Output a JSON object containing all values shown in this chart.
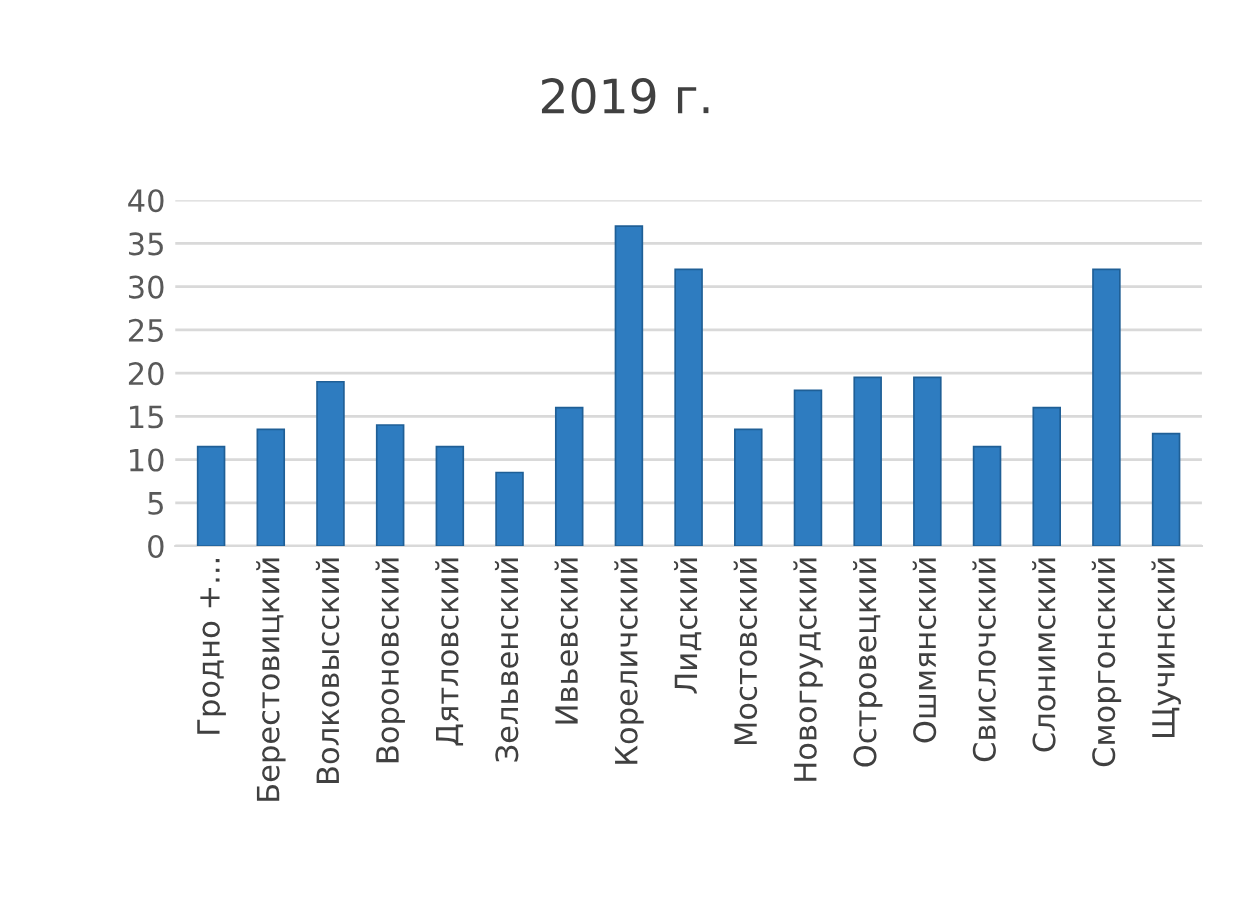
{
  "chart_data": {
    "type": "bar",
    "title": "2019 г.",
    "categories": [
      "Гродно +...",
      "Берестовицкий",
      "Волковысский",
      "Вороновский",
      "Дятловский",
      "Зельвенский",
      "Ивьевский",
      "Кореличский",
      "Лидский",
      "Мостовский",
      "Новогрудский",
      "Островецкий",
      "Ошмянский",
      "Свислочский",
      "Слонимский",
      "Сморгонский",
      "Щучинский"
    ],
    "values": [
      11.5,
      13.5,
      19,
      14,
      11.5,
      8.5,
      16,
      37,
      32,
      13.5,
      18,
      19.5,
      19.5,
      11.5,
      16,
      32,
      13
    ],
    "color": "#2e7cc0",
    "ylim": [
      0,
      40
    ],
    "yticks": [
      0,
      5,
      10,
      15,
      20,
      25,
      30,
      35,
      40
    ],
    "grid": "y"
  }
}
